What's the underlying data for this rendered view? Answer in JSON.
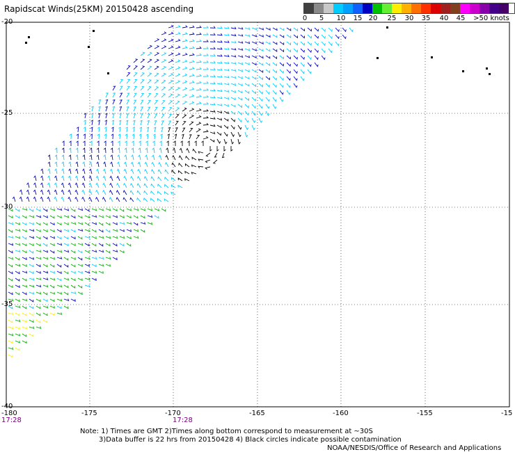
{
  "title": "Rapidscat Winds(25KM) 20150428 ascending",
  "legend": {
    "labels": [
      "0",
      "5",
      "10",
      "15",
      "20",
      "25",
      "30",
      "35",
      "40",
      "45",
      ">50 knots"
    ],
    "colors": [
      "#404040",
      "#8a8a8a",
      "#c8c8c8",
      "#00ccff",
      "#00a0ff",
      "#1060ff",
      "#0000c0",
      "#00c000",
      "#66ee33",
      "#ffee00",
      "#ffb000",
      "#ff7000",
      "#ff3000",
      "#dd0000",
      "#a02020",
      "#804020",
      "#ff00ff",
      "#cc00cc",
      "#8800aa",
      "#440088",
      "#440066"
    ]
  },
  "axes": {
    "x_ticks": [
      "-180",
      "-175",
      "-170",
      "-165",
      "-160",
      "-155",
      "-15"
    ],
    "y_ticks": [
      "-20",
      "-25",
      "-30",
      "-35",
      "-40"
    ]
  },
  "times": [
    "17:28",
    "17:28"
  ],
  "notes": [
    "Note: 1) Times are GMT 2)Times along bottom correspond to measurement at ~30S",
    "3)Data buffer is 22 hrs from 20150428 4) Black circles indicate possible contamination",
    "NOAA/NESDIS/Office of Research and Applications"
  ],
  "wind_colors": {
    "calm": "#000000",
    "light": "#00ccff",
    "moderate": "#0000c0",
    "fresh": "#00b000",
    "strong": "#ffee00"
  }
}
